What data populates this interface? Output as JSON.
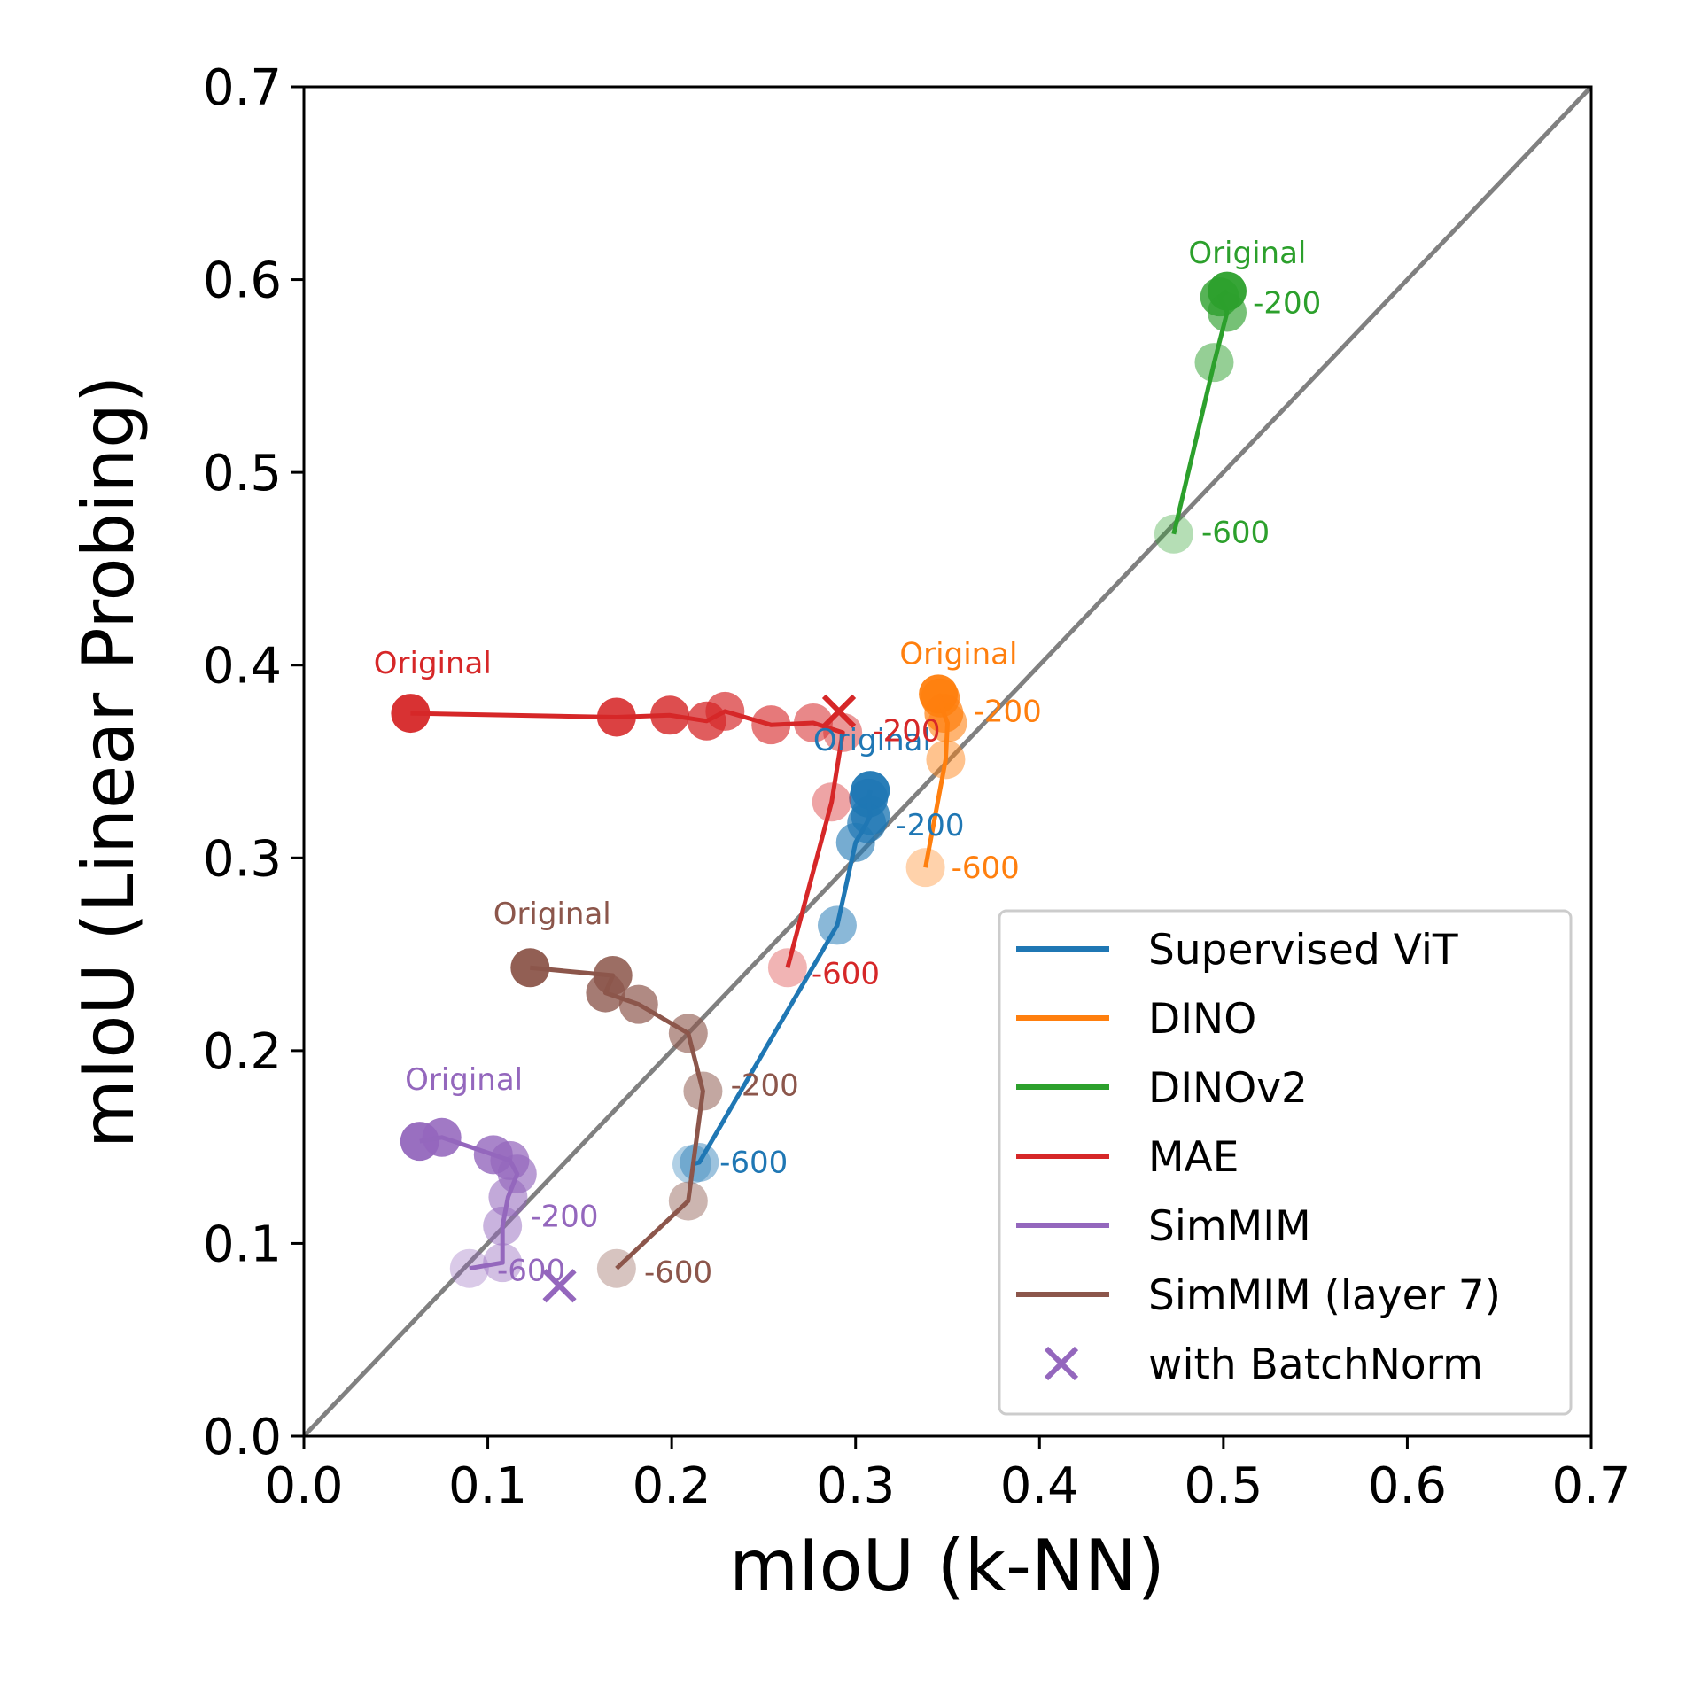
{
  "chart_data": {
    "type": "scatter",
    "xlabel": "mIoU (k-NN)",
    "ylabel": "mIoU (Linear Probing)",
    "xlim": [
      0.0,
      0.7
    ],
    "ylim": [
      0.0,
      0.7
    ],
    "xticks": [
      "0.0",
      "0.1",
      "0.2",
      "0.3",
      "0.4",
      "0.5",
      "0.6",
      "0.7"
    ],
    "yticks": [
      "0.0",
      "0.1",
      "0.2",
      "0.3",
      "0.4",
      "0.5",
      "0.6",
      "0.7"
    ],
    "diagonal": {
      "from": [
        0,
        0
      ],
      "to": [
        0.7,
        0.7
      ],
      "color": "#808080"
    },
    "grid": false,
    "legend_position": "lower-right",
    "series": [
      {
        "name": "Supervised ViT",
        "color": "#1f77b4",
        "x": [
          0.308,
          0.307,
          0.308,
          0.306,
          0.3,
          0.29,
          0.215,
          0.211
        ],
        "y": [
          0.335,
          0.331,
          0.322,
          0.318,
          0.308,
          0.265,
          0.142,
          0.141
        ],
        "annotations": [
          {
            "text": "Original",
            "x": 0.309,
            "y": 0.36
          },
          {
            "text": "-200",
            "x": 0.322,
            "y": 0.316
          },
          {
            "text": "-600",
            "x": 0.226,
            "y": 0.141
          }
        ]
      },
      {
        "name": "DINO",
        "color": "#ff7f0e",
        "x": [
          0.345,
          0.346,
          0.348,
          0.35,
          0.349,
          0.338
        ],
        "y": [
          0.385,
          0.383,
          0.375,
          0.37,
          0.351,
          0.295
        ],
        "annotations": [
          {
            "text": "Original",
            "x": 0.356,
            "y": 0.405
          },
          {
            "text": "-200",
            "x": 0.364,
            "y": 0.375
          },
          {
            "text": "-600",
            "x": 0.352,
            "y": 0.294
          }
        ]
      },
      {
        "name": "DINOv2",
        "color": "#2ca02c",
        "x": [
          0.502,
          0.498,
          0.502,
          0.495,
          0.473
        ],
        "y": [
          0.594,
          0.591,
          0.583,
          0.557,
          0.468
        ],
        "annotations": [
          {
            "text": "Original",
            "x": 0.513,
            "y": 0.613
          },
          {
            "text": "-200",
            "x": 0.516,
            "y": 0.587
          },
          {
            "text": "-600",
            "x": 0.488,
            "y": 0.468
          }
        ]
      },
      {
        "name": "MAE",
        "color": "#d62728",
        "x": [
          0.058,
          0.17,
          0.199,
          0.219,
          0.229,
          0.254,
          0.277,
          0.293,
          0.287,
          0.263
        ],
        "y": [
          0.375,
          0.373,
          0.374,
          0.371,
          0.376,
          0.369,
          0.37,
          0.365,
          0.329,
          0.243
        ],
        "annotations": [
          {
            "text": "Original",
            "x": 0.07,
            "y": 0.4
          },
          {
            "text": "-200",
            "x": 0.309,
            "y": 0.365
          },
          {
            "text": "-600",
            "x": 0.276,
            "y": 0.239
          }
        ]
      },
      {
        "name": "SimMIM",
        "color": "#9467bd",
        "x": [
          0.063,
          0.075,
          0.103,
          0.112,
          0.116,
          0.111,
          0.108,
          0.108,
          0.09
        ],
        "y": [
          0.153,
          0.155,
          0.146,
          0.143,
          0.136,
          0.124,
          0.109,
          0.09,
          0.087
        ],
        "annotations": [
          {
            "text": "Original",
            "x": 0.087,
            "y": 0.184
          },
          {
            "text": "-200",
            "x": 0.123,
            "y": 0.113
          },
          {
            "text": "-600",
            "x": 0.105,
            "y": 0.085
          }
        ]
      },
      {
        "name": "SimMIM (layer 7)",
        "color": "#8c564b",
        "x": [
          0.123,
          0.168,
          0.164,
          0.182,
          0.209,
          0.217,
          0.209,
          0.17
        ],
        "y": [
          0.243,
          0.239,
          0.23,
          0.224,
          0.209,
          0.179,
          0.122,
          0.087
        ],
        "annotations": [
          {
            "text": "Original",
            "x": 0.135,
            "y": 0.27
          },
          {
            "text": "-200",
            "x": 0.232,
            "y": 0.181
          },
          {
            "text": "-600",
            "x": 0.185,
            "y": 0.084
          }
        ]
      }
    ],
    "batchnorm_points": [
      {
        "label": "with BatchNorm",
        "color": "#d62728",
        "x": 0.291,
        "y": 0.376
      },
      {
        "label": "with BatchNorm",
        "color": "#9467bd",
        "x": 0.139,
        "y": 0.078
      }
    ],
    "legend": [
      {
        "label": "Supervised ViT",
        "color": "#1f77b4",
        "marker": "line"
      },
      {
        "label": "DINO",
        "color": "#ff7f0e",
        "marker": "line"
      },
      {
        "label": "DINOv2",
        "color": "#2ca02c",
        "marker": "line"
      },
      {
        "label": "MAE",
        "color": "#d62728",
        "marker": "line"
      },
      {
        "label": "SimMIM",
        "color": "#9467bd",
        "marker": "line"
      },
      {
        "label": "SimMIM (layer 7)",
        "color": "#8c564b",
        "marker": "line"
      },
      {
        "label": "with BatchNorm",
        "color": "#9467bd",
        "marker": "x"
      }
    ]
  }
}
